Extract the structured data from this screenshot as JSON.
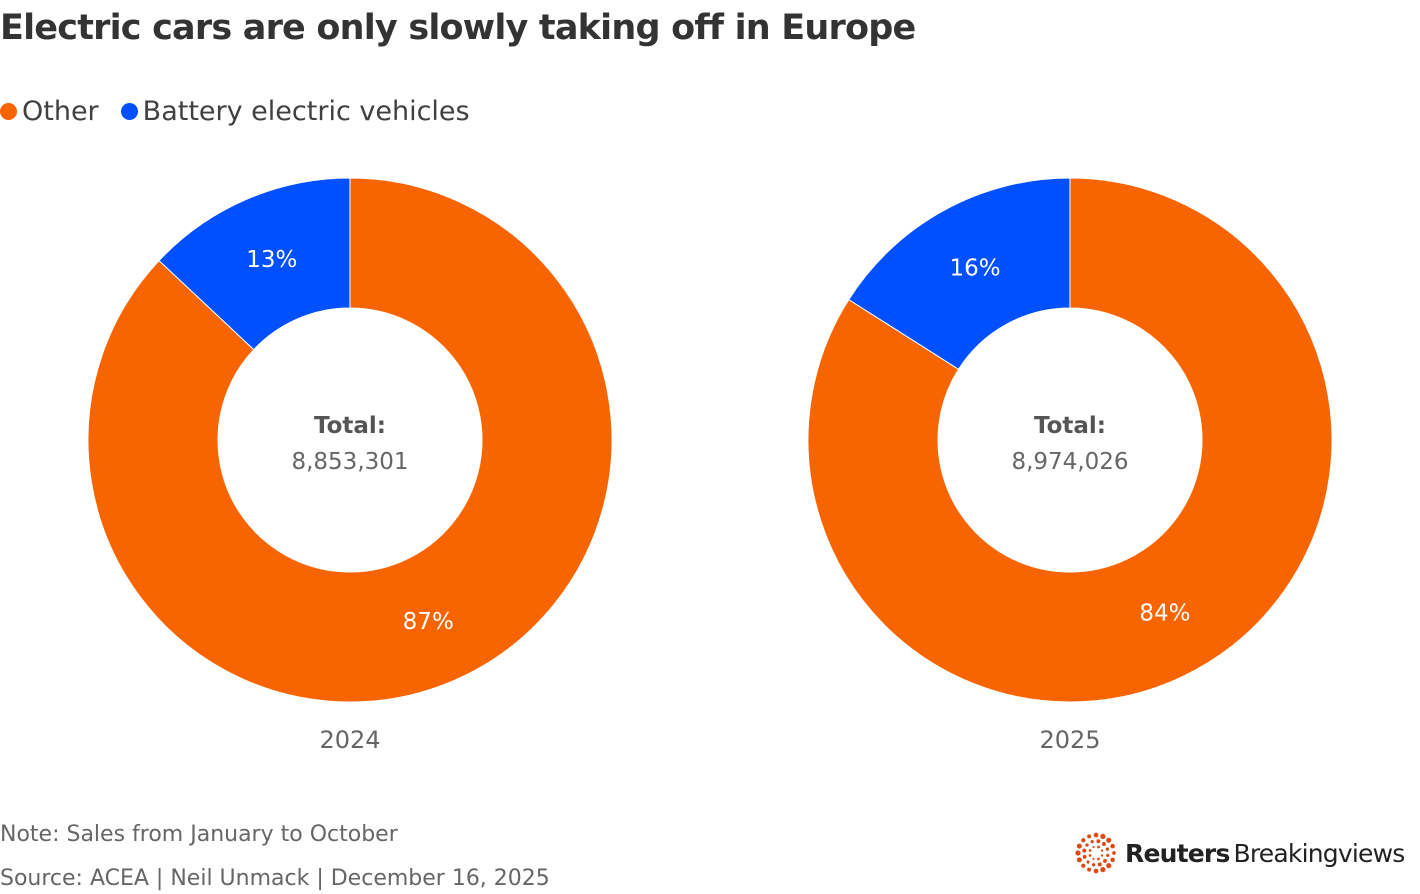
{
  "title": "Electric cars are only slowly taking off in Europe",
  "legend": [
    {
      "label": "Other",
      "color": "#F76400"
    },
    {
      "label": "Battery electric vehicles",
      "color": "#0050FF"
    }
  ],
  "chart_data": [
    {
      "type": "pie",
      "donut": true,
      "category": "2024",
      "center_label": "Total:",
      "center_value": "8,853,301",
      "slices": [
        {
          "name": "Other",
          "value": 87,
          "label": "87%",
          "color": "#F76400"
        },
        {
          "name": "Battery electric vehicles",
          "value": 13,
          "label": "13%",
          "color": "#0050FF"
        }
      ]
    },
    {
      "type": "pie",
      "donut": true,
      "category": "2025",
      "center_label": "Total:",
      "center_value": "8,974,026",
      "slices": [
        {
          "name": "Other",
          "value": 84,
          "label": "84%",
          "color": "#F76400"
        },
        {
          "name": "Battery electric vehicles",
          "value": 16,
          "label": "16%",
          "color": "#0050FF"
        }
      ]
    }
  ],
  "footer": {
    "note": "Note: Sales from January to October",
    "source": "Source: ACEA | Neil Unmack | December 16, 2025"
  },
  "logo": {
    "brand": "Reuters",
    "product": "Breakingviews",
    "color": "#E0480F"
  }
}
